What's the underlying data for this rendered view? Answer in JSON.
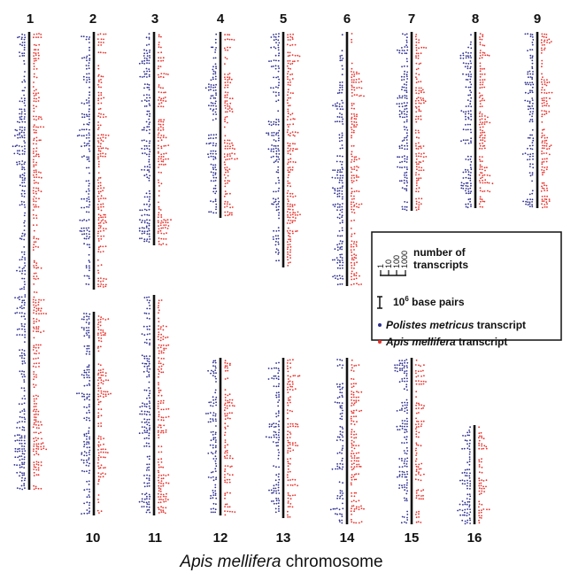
{
  "chart_data": {
    "type": "scatter",
    "xlabel_italic": "Apis mellifera",
    "xlabel_rest": " chromosome",
    "chromosomes": [
      "1",
      "2",
      "3",
      "4",
      "5",
      "6",
      "7",
      "8",
      "9",
      "10",
      "11",
      "12",
      "13",
      "14",
      "15",
      "16"
    ],
    "series": [
      {
        "name_italic": "Polistes metricus",
        "name_rest": " transcript",
        "color": "#2b2d8e"
      },
      {
        "name_italic": "Apis mellifera",
        "name_rest": " transcript",
        "color": "#e8312a"
      }
    ],
    "legend": {
      "scale_title_line1": "number of",
      "scale_title_line2": "transcripts",
      "scale_ticks": [
        "1",
        "10",
        "100",
        "1000"
      ],
      "bar_label_base": "10",
      "bar_label_exp": "6",
      "bar_label_rest": " base pairs",
      "placement": "right"
    },
    "colors": {
      "polistes": "#2b2d8e",
      "apis": "#e8312a",
      "chromosome_line": "#111111"
    }
  }
}
